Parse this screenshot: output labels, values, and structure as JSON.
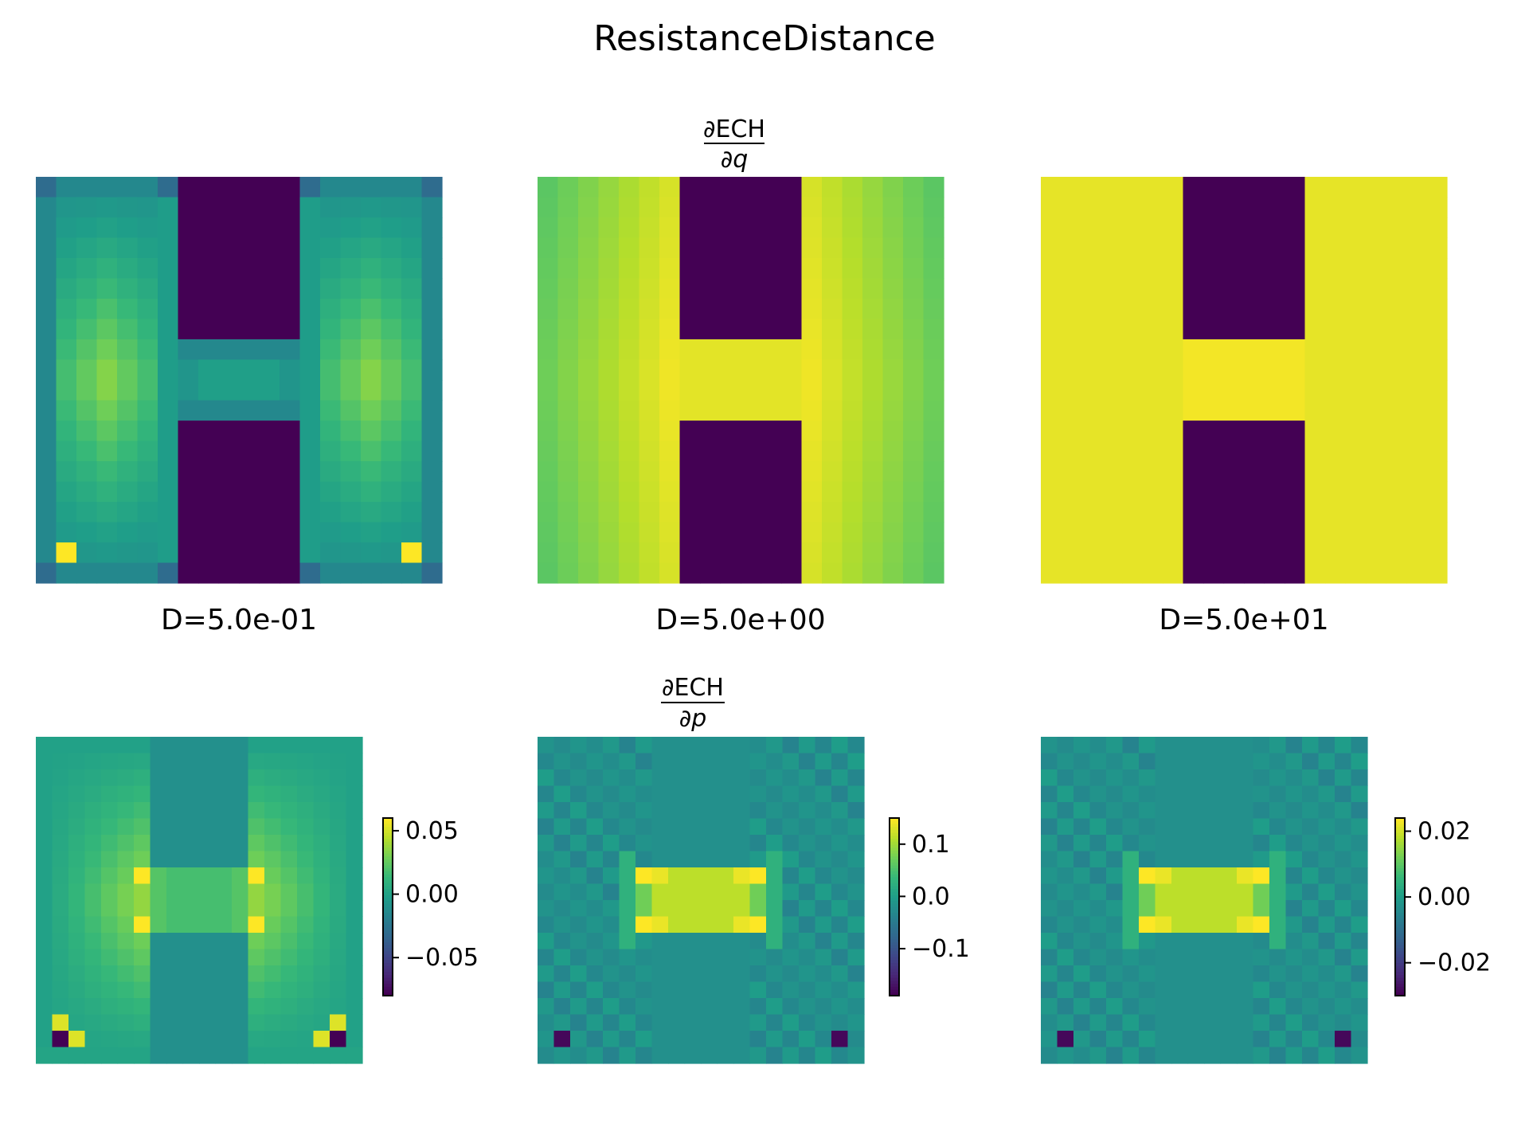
{
  "figure_title": "ResistanceDistance",
  "row_titles": {
    "top": {
      "numerator": "∂ECH",
      "denominator": "∂q"
    },
    "bottom": {
      "numerator": "∂ECH",
      "denominator": "∂p"
    }
  },
  "colormap": "viridis",
  "chart_data": [
    {
      "type": "heatmap",
      "row": "top",
      "col": 0,
      "xlabel": "D=5.0e-01",
      "grid": "20x20",
      "field": "dECH_dq",
      "D": 0.5,
      "vmin": 0.0,
      "vmax": 1.0,
      "colorbar": false
    },
    {
      "type": "heatmap",
      "row": "top",
      "col": 1,
      "xlabel": "D=5.0e+00",
      "grid": "20x20",
      "field": "dECH_dq",
      "D": 5.0,
      "vmin": 0.0,
      "vmax": 1.0,
      "colorbar": false
    },
    {
      "type": "heatmap",
      "row": "top",
      "col": 2,
      "xlabel": "D=5.0e+01",
      "grid": "20x20",
      "field": "dECH_dq",
      "D": 50.0,
      "vmin": 0.0,
      "vmax": 1.0,
      "colorbar": false
    },
    {
      "type": "heatmap",
      "row": "bottom",
      "col": 0,
      "xlabel": "",
      "grid": "20x20",
      "field": "dECH_dp",
      "D": 0.5,
      "vmin": -0.08,
      "vmax": 0.06,
      "colorbar": true,
      "ticks": [
        0.05,
        0.0,
        -0.05
      ],
      "tick_labels": [
        "0.05",
        "0.00",
        "−0.05"
      ]
    },
    {
      "type": "heatmap",
      "row": "bottom",
      "col": 1,
      "xlabel": "",
      "grid": "20x20",
      "field": "dECH_dp",
      "D": 5.0,
      "vmin": -0.19,
      "vmax": 0.15,
      "colorbar": true,
      "ticks": [
        0.1,
        0.0,
        -0.1
      ],
      "tick_labels": [
        "0.1",
        "0.0",
        "−0.1"
      ]
    },
    {
      "type": "heatmap",
      "row": "bottom",
      "col": 2,
      "xlabel": "",
      "grid": "20x20",
      "field": "dECH_dp",
      "D": 50.0,
      "vmin": -0.03,
      "vmax": 0.024,
      "colorbar": true,
      "ticks": [
        0.02,
        0.0,
        -0.02
      ],
      "tick_labels": [
        "0.02",
        "0.00",
        "−0.02"
      ]
    }
  ]
}
